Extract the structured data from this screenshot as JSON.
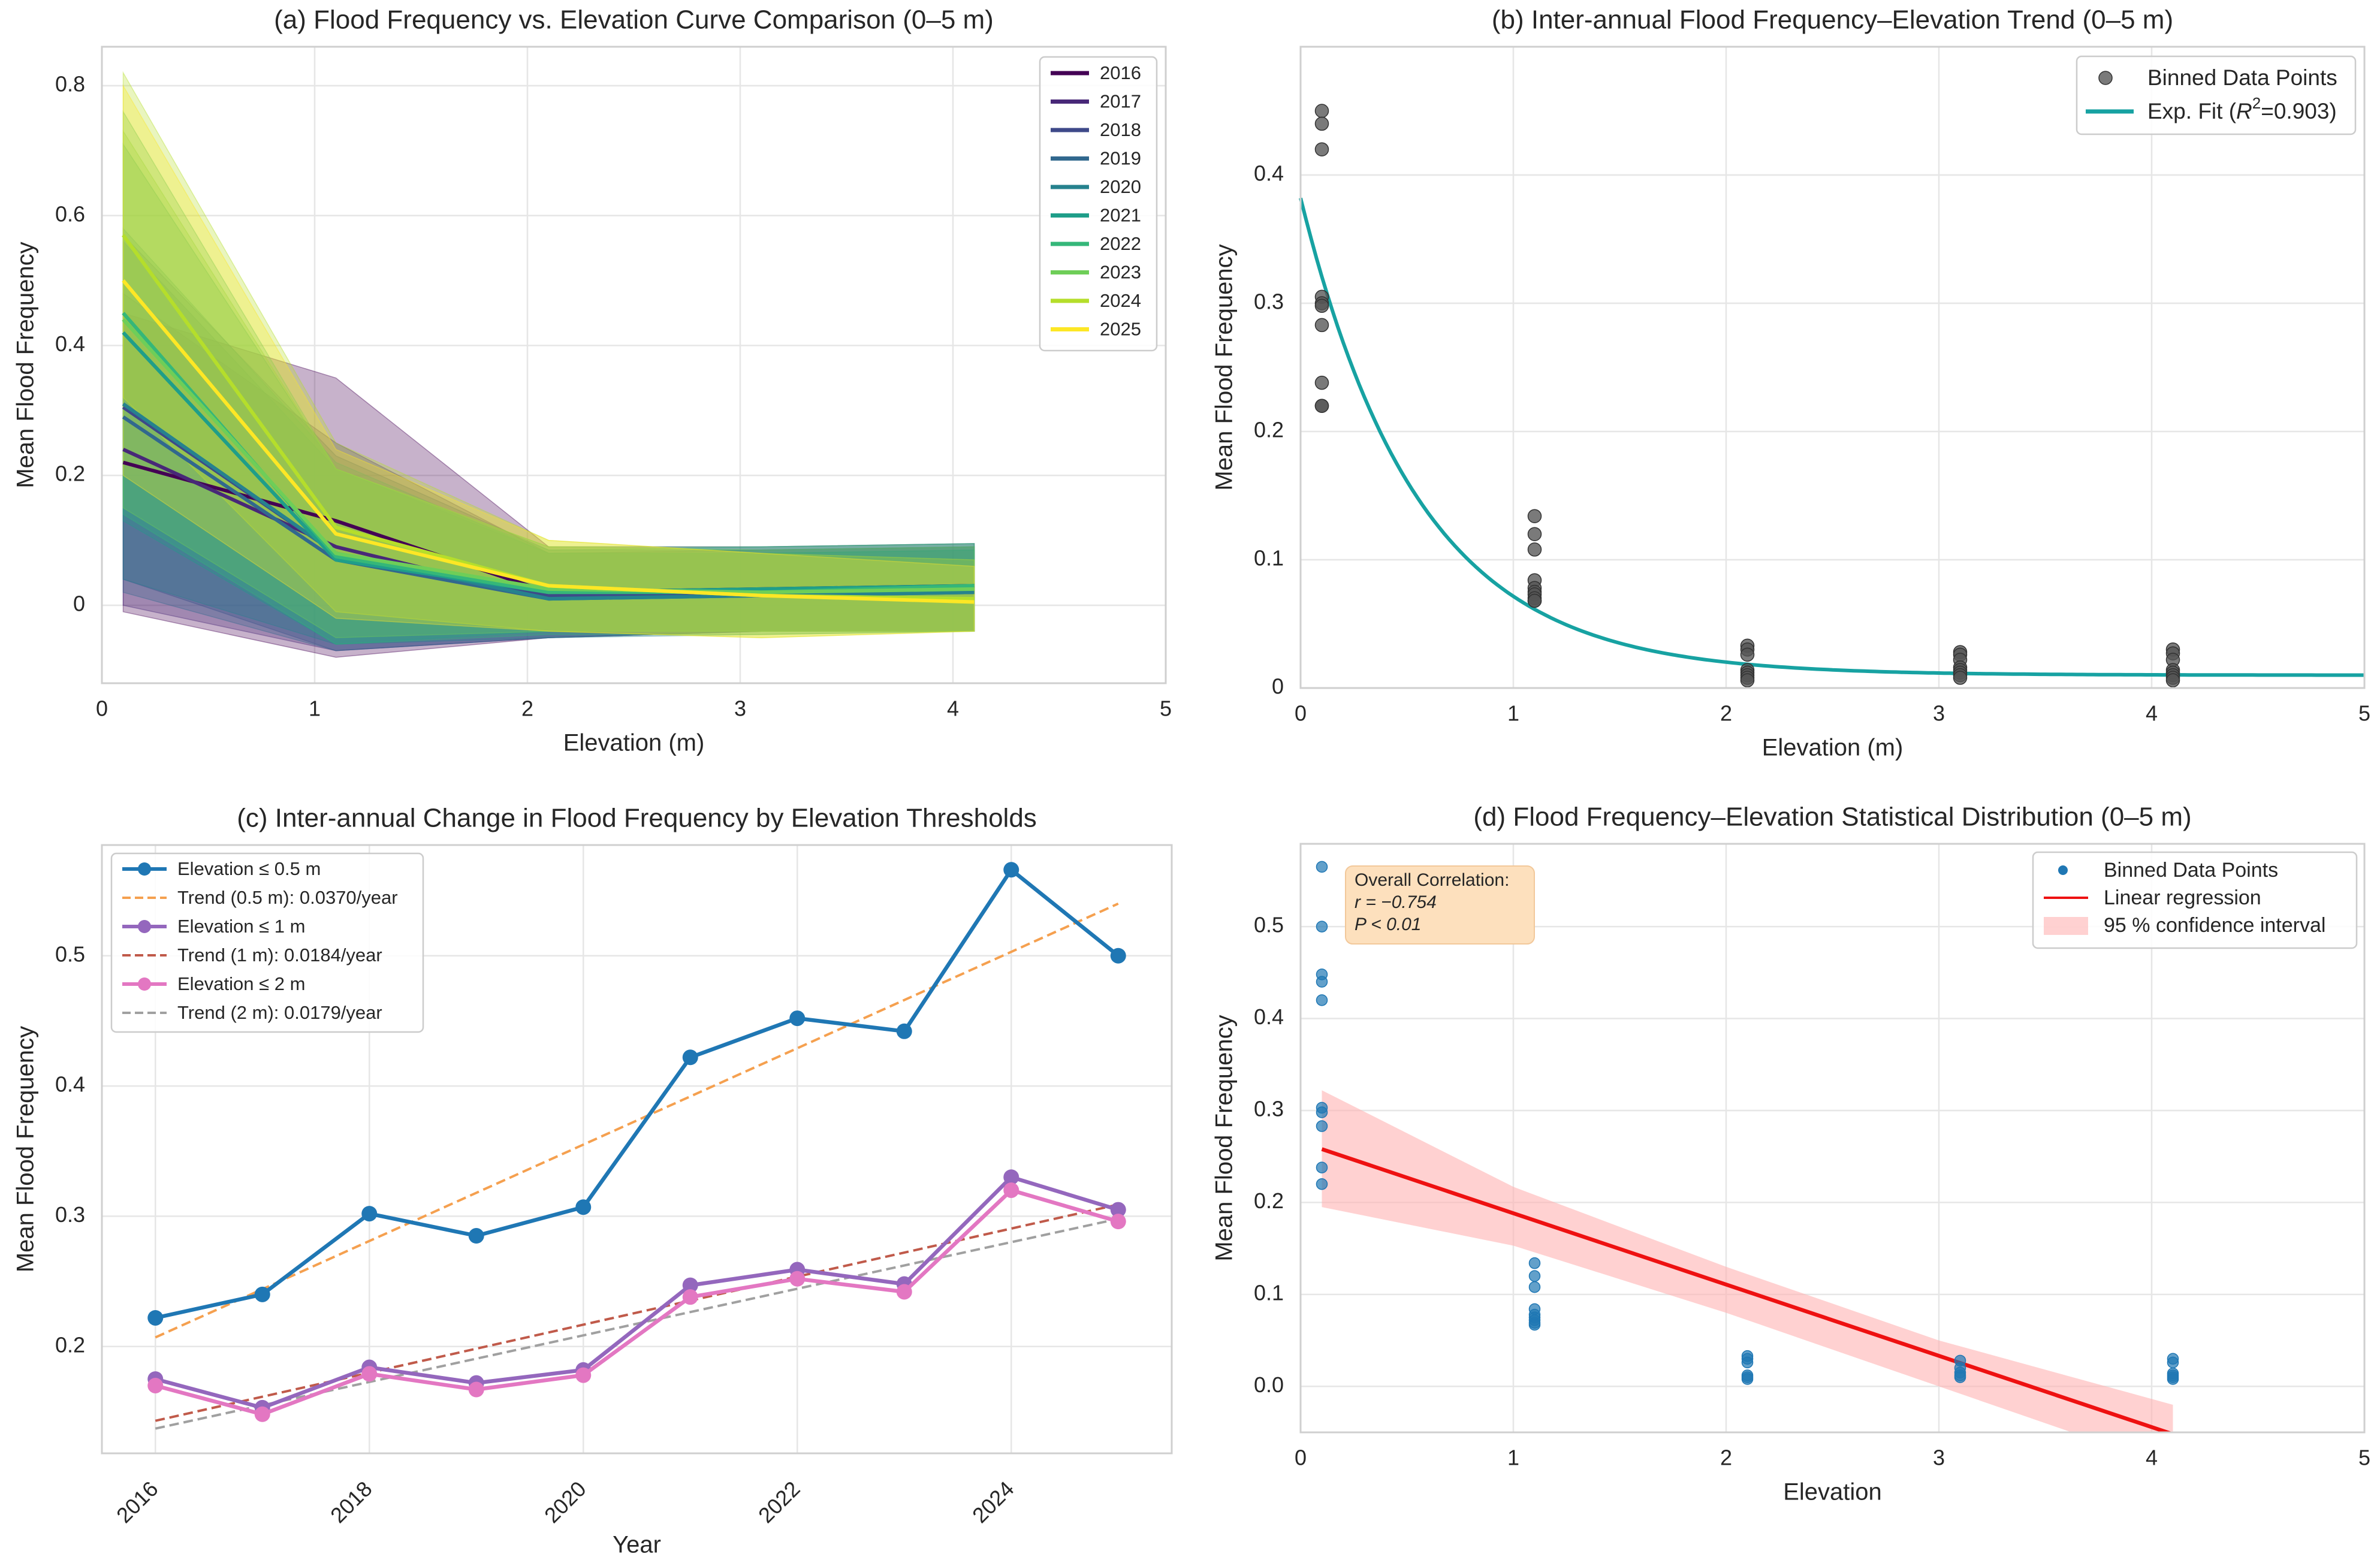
{
  "chart_data": [
    {
      "id": "a",
      "type": "area",
      "title": "(a) Flood Frequency vs. Elevation Curve Comparison (0–5 m)",
      "xlabel": "Elevation (m)",
      "ylabel": "Mean Flood Frequency",
      "xlim": [
        0,
        5
      ],
      "ylim": [
        -0.12,
        0.86
      ],
      "xticks": [
        "0",
        "1",
        "2",
        "3",
        "4",
        "5"
      ],
      "xtick_values": [
        0,
        1,
        2,
        3,
        4,
        5
      ],
      "yticks": [
        "0",
        "0.2",
        "0.4",
        "0.6",
        "0.8"
      ],
      "ytick_values": [
        0,
        0.2,
        0.4,
        0.6,
        0.8
      ],
      "grid": true,
      "legend_position": "top-right",
      "x": [
        0.1,
        1.1,
        2.1,
        3.1,
        4.1
      ],
      "series": [
        {
          "name": "2016",
          "color": "#440154",
          "values": [
            0.22,
            0.13,
            0.02,
            0.025,
            0.03
          ],
          "lower": [
            -0.01,
            -0.08,
            -0.05,
            -0.04,
            -0.04
          ],
          "upper": [
            0.45,
            0.35,
            0.09,
            0.09,
            0.095
          ]
        },
        {
          "name": "2017",
          "color": "#482878",
          "values": [
            0.24,
            0.09,
            0.01,
            0.02,
            0.03
          ],
          "lower": [
            0.0,
            -0.07,
            -0.05,
            -0.04,
            -0.04
          ],
          "upper": [
            0.48,
            0.25,
            0.08,
            0.085,
            0.09
          ]
        },
        {
          "name": "2018",
          "color": "#3e4989",
          "values": [
            0.305,
            0.08,
            0.015,
            0.02,
            0.025
          ],
          "lower": [
            0.04,
            -0.07,
            -0.05,
            -0.04,
            -0.04
          ],
          "upper": [
            0.57,
            0.23,
            0.085,
            0.085,
            0.09
          ]
        },
        {
          "name": "2019",
          "color": "#31688e",
          "values": [
            0.29,
            0.07,
            0.01,
            0.015,
            0.02
          ],
          "lower": [
            0.02,
            -0.07,
            -0.05,
            -0.04,
            -0.04
          ],
          "upper": [
            0.56,
            0.21,
            0.08,
            0.08,
            0.085
          ]
        },
        {
          "name": "2020",
          "color": "#26828e",
          "values": [
            0.31,
            0.08,
            0.01,
            0.015,
            0.02
          ],
          "lower": [
            0.04,
            -0.06,
            -0.05,
            -0.045,
            -0.04
          ],
          "upper": [
            0.58,
            0.22,
            0.08,
            0.08,
            0.085
          ]
        },
        {
          "name": "2021",
          "color": "#1f9e89",
          "values": [
            0.42,
            0.07,
            0.02,
            0.025,
            0.03
          ],
          "lower": [
            0.13,
            -0.06,
            -0.04,
            -0.04,
            -0.04
          ],
          "upper": [
            0.71,
            0.21,
            0.085,
            0.09,
            0.095
          ]
        },
        {
          "name": "2022",
          "color": "#35b779",
          "values": [
            0.45,
            0.075,
            0.02,
            0.02,
            0.03
          ],
          "lower": [
            0.14,
            -0.06,
            -0.045,
            -0.045,
            -0.04
          ],
          "upper": [
            0.76,
            0.21,
            0.09,
            0.09,
            0.095
          ]
        },
        {
          "name": "2023",
          "color": "#6ece58",
          "values": [
            0.44,
            0.08,
            0.025,
            0.02,
            0.025
          ],
          "lower": [
            0.15,
            -0.05,
            -0.04,
            -0.04,
            -0.04
          ],
          "upper": [
            0.73,
            0.21,
            0.09,
            0.085,
            0.09
          ]
        },
        {
          "name": "2024",
          "color": "#b5de2b",
          "values": [
            0.57,
            0.12,
            0.03,
            0.015,
            0.01
          ],
          "lower": [
            0.32,
            -0.01,
            -0.04,
            -0.05,
            -0.04
          ],
          "upper": [
            0.82,
            0.25,
            0.1,
            0.08,
            0.07
          ]
        },
        {
          "name": "2025",
          "color": "#fde725",
          "values": [
            0.5,
            0.11,
            0.03,
            0.015,
            0.005
          ],
          "lower": [
            0.2,
            -0.02,
            -0.04,
            -0.05,
            -0.04
          ],
          "upper": [
            0.8,
            0.24,
            0.1,
            0.08,
            0.06
          ]
        }
      ]
    },
    {
      "id": "b",
      "type": "scatter",
      "title": "(b) Inter-annual Flood Frequency–Elevation Trend (0–5 m)",
      "xlabel": "Elevation (m)",
      "ylabel": "Mean Flood Frequency",
      "xlim": [
        0,
        5
      ],
      "ylim": [
        0,
        0.5
      ],
      "xticks": [
        "0",
        "1",
        "2",
        "3",
        "4",
        "5"
      ],
      "xtick_values": [
        0,
        1,
        2,
        3,
        4,
        5
      ],
      "yticks": [
        "0",
        "0.1",
        "0.2",
        "0.3",
        "0.4"
      ],
      "ytick_values": [
        0,
        0.1,
        0.2,
        0.3,
        0.4
      ],
      "grid": true,
      "legend_position": "top-right",
      "points": {
        "name": "Binned Data Points",
        "color": "#555555",
        "x": [
          0.1,
          0.1,
          0.1,
          0.1,
          0.1,
          0.1,
          0.1,
          0.1,
          0.1,
          0.1,
          1.1,
          1.1,
          1.1,
          1.1,
          1.1,
          1.1,
          1.1,
          1.1,
          1.1,
          1.1,
          2.1,
          2.1,
          2.1,
          2.1,
          2.1,
          2.1,
          2.1,
          2.1,
          3.1,
          3.1,
          3.1,
          3.1,
          3.1,
          3.1,
          3.1,
          3.1,
          4.1,
          4.1,
          4.1,
          4.1,
          4.1,
          4.1,
          4.1,
          4.1
        ],
        "y": [
          0.45,
          0.44,
          0.42,
          0.305,
          0.3,
          0.298,
          0.283,
          0.238,
          0.22,
          0.22,
          0.134,
          0.12,
          0.108,
          0.084,
          0.078,
          0.075,
          0.073,
          0.07,
          0.068,
          0.068,
          0.033,
          0.03,
          0.026,
          0.014,
          0.012,
          0.01,
          0.008,
          0.006,
          0.028,
          0.026,
          0.022,
          0.016,
          0.014,
          0.012,
          0.01,
          0.008,
          0.03,
          0.027,
          0.022,
          0.014,
          0.012,
          0.01,
          0.008,
          0.006
        ]
      },
      "fit": {
        "name": "Exp. Fit (R²=0.903)",
        "name_main": "Exp. Fit (",
        "name_r": "R",
        "name_sup": "2",
        "name_tail": "=0.903)",
        "color": "#17a2a2",
        "a": 0.372,
        "k": 1.8,
        "c": 0.01
      }
    },
    {
      "id": "c",
      "type": "line",
      "title": "(c) Inter-annual Change in Flood Frequency by Elevation Thresholds",
      "xlabel": "Year",
      "ylabel": "Mean Flood Frequency",
      "xlim": [
        2015.5,
        2025.5
      ],
      "ylim": [
        0.118,
        0.585
      ],
      "xticks": [
        "2016",
        "2018",
        "2020",
        "2022",
        "2024"
      ],
      "xtick_values": [
        2016,
        2018,
        2020,
        2022,
        2024
      ],
      "yticks": [
        "0.2",
        "0.3",
        "0.4",
        "0.5"
      ],
      "ytick_values": [
        0.2,
        0.3,
        0.4,
        0.5
      ],
      "grid": true,
      "legend_position": "top-left",
      "x": [
        2016,
        2017,
        2018,
        2019,
        2020,
        2021,
        2022,
        2023,
        2024,
        2025
      ],
      "series": [
        {
          "name": "Elevation ≤ 0.5 m",
          "color": "#1f77b4",
          "values": [
            0.222,
            0.24,
            0.302,
            0.285,
            0.307,
            0.422,
            0.452,
            0.442,
            0.566,
            0.5
          ]
        },
        {
          "name": "Elevation ≤ 1 m",
          "color": "#9467bd",
          "values": [
            0.175,
            0.153,
            0.184,
            0.172,
            0.182,
            0.247,
            0.259,
            0.248,
            0.33,
            0.305
          ]
        },
        {
          "name": "Elevation ≤ 2 m",
          "color": "#e377c2",
          "values": [
            0.17,
            0.148,
            0.179,
            0.167,
            0.178,
            0.238,
            0.252,
            0.242,
            0.32,
            0.296
          ]
        }
      ],
      "trends": [
        {
          "name": "Trend (0.5 m): 0.0370/year",
          "color": "#f5a04f",
          "start": 0.207,
          "end": 0.54
        },
        {
          "name": "Trend (1 m): 0.0184/year",
          "color": "#c05a4a",
          "start": 0.143,
          "end": 0.309
        },
        {
          "name": "Trend (2 m): 0.0179/year",
          "color": "#a0a0a0",
          "start": 0.137,
          "end": 0.298
        }
      ]
    },
    {
      "id": "d",
      "type": "scatter",
      "title": "(d) Flood Frequency–Elevation Statistical Distribution (0–5 m)",
      "xlabel": "Elevation",
      "ylabel": "Mean Flood Frequency",
      "xlim": [
        0,
        5
      ],
      "ylim": [
        -0.05,
        0.59
      ],
      "xticks": [
        "0",
        "1",
        "2",
        "3",
        "4",
        "5"
      ],
      "xtick_values": [
        0,
        1,
        2,
        3,
        4,
        5
      ],
      "yticks": [
        "0.0",
        "0.1",
        "0.2",
        "0.3",
        "0.4",
        "0.5"
      ],
      "ytick_values": [
        0,
        0.1,
        0.2,
        0.3,
        0.4,
        0.5
      ],
      "grid": true,
      "legend_position": "top-right",
      "points": {
        "name": "Binned Data Points",
        "color": "#1f77b4",
        "x": [
          0.1,
          0.1,
          0.1,
          0.1,
          0.1,
          0.1,
          0.1,
          0.1,
          0.1,
          0.1,
          1.1,
          1.1,
          1.1,
          1.1,
          1.1,
          1.1,
          1.1,
          1.1,
          1.1,
          2.1,
          2.1,
          2.1,
          2.1,
          2.1,
          2.1,
          3.1,
          3.1,
          3.1,
          3.1,
          3.1,
          4.1,
          4.1,
          4.1,
          4.1,
          4.1,
          4.1
        ],
        "y": [
          0.565,
          0.5,
          0.448,
          0.44,
          0.42,
          0.303,
          0.298,
          0.283,
          0.238,
          0.22,
          0.134,
          0.12,
          0.108,
          0.084,
          0.078,
          0.075,
          0.072,
          0.069,
          0.067,
          0.033,
          0.03,
          0.026,
          0.012,
          0.01,
          0.008,
          0.028,
          0.02,
          0.015,
          0.012,
          0.01,
          0.03,
          0.026,
          0.014,
          0.012,
          0.01,
          0.008
        ]
      },
      "regression": {
        "name": "Linear regression",
        "color": "#ee1111",
        "x": [
          0.1,
          4.1
        ],
        "y": [
          0.258,
          -0.052
        ]
      },
      "ci": {
        "name": "95 % confidence interval",
        "color": "#ffb3b3",
        "x": [
          0.1,
          1.0,
          2.0,
          3.0,
          4.1
        ],
        "lower": [
          0.195,
          0.153,
          0.08,
          0.0,
          -0.088
        ],
        "upper": [
          0.322,
          0.217,
          0.13,
          0.05,
          -0.02
        ]
      },
      "annotation": {
        "line1": "Overall Correlation:",
        "line2": "r = −0.754",
        "line3": "P < 0.01"
      }
    }
  ]
}
